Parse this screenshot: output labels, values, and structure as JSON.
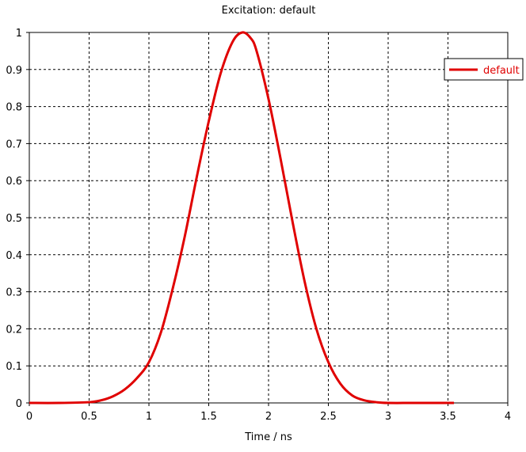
{
  "chart_data": {
    "type": "line",
    "title": "Excitation: default",
    "xlabel": "Time / ns",
    "ylabel": "",
    "xlim": [
      0,
      4
    ],
    "ylim": [
      0,
      1
    ],
    "xticks": [
      0,
      0.5,
      1,
      1.5,
      2,
      2.5,
      3,
      3.5,
      4
    ],
    "xtick_labels": [
      "0",
      "0.5",
      "1",
      "1.5",
      "2",
      "2.5",
      "3",
      "3.5",
      "4"
    ],
    "yticks": [
      0,
      0.1,
      0.2,
      0.3,
      0.4,
      0.5,
      0.6,
      0.7,
      0.8,
      0.9,
      1
    ],
    "ytick_labels": [
      "0",
      "0.1",
      "0.2",
      "0.3",
      "0.4",
      "0.5",
      "0.6",
      "0.7",
      "0.8",
      "0.9",
      "1"
    ],
    "grid": true,
    "legend_position": "top-right",
    "series": [
      {
        "name": "default",
        "color": "#e00000",
        "x": [
          0,
          0.25,
          0.5,
          0.6,
          0.7,
          0.8,
          0.9,
          1.0,
          1.1,
          1.2,
          1.3,
          1.4,
          1.5,
          1.6,
          1.7,
          1.78,
          1.85,
          1.9,
          2.0,
          2.1,
          2.2,
          2.3,
          2.4,
          2.5,
          2.6,
          2.7,
          2.8,
          2.9,
          3.0,
          3.25,
          3.55
        ],
        "y": [
          0,
          0,
          0.002,
          0.007,
          0.018,
          0.037,
          0.067,
          0.11,
          0.19,
          0.31,
          0.45,
          0.61,
          0.76,
          0.89,
          0.975,
          1.0,
          0.985,
          0.95,
          0.82,
          0.66,
          0.49,
          0.33,
          0.2,
          0.11,
          0.052,
          0.02,
          0.007,
          0.002,
          0,
          0,
          0
        ]
      }
    ]
  }
}
